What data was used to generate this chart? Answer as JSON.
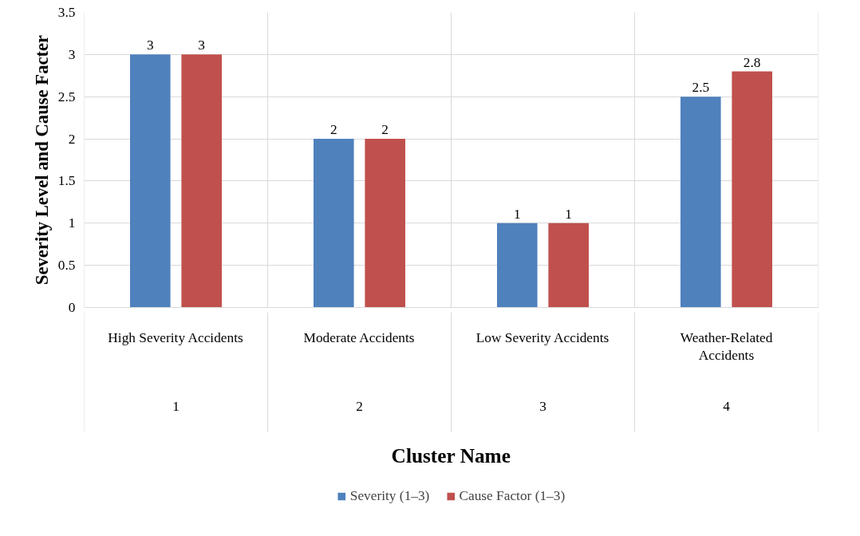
{
  "chart_data": {
    "type": "bar",
    "xlabel": "Cluster Name",
    "ylabel": "Severity Level and Cause Facter",
    "categories": [
      "High Severity Accidents",
      "Moderate Accidents",
      "Low Severity Accidents",
      "Weather-Related Accidents"
    ],
    "series": [
      {
        "name": "Severity (1–3)",
        "color": "#4f81bd",
        "values": [
          3,
          2,
          1,
          2.5
        ]
      },
      {
        "name": "Cause Factor (1–3)",
        "color": "#c0504d",
        "values": [
          3,
          2,
          1,
          2.8
        ]
      }
    ],
    "annotations": [
      "1",
      "2",
      "3",
      "4"
    ],
    "ylim": [
      0,
      3.5
    ],
    "yticks": [
      0,
      0.5,
      1,
      1.5,
      2,
      2.5,
      3,
      3.5
    ],
    "grid": "y",
    "legend": "bottom",
    "data_labels": true
  }
}
